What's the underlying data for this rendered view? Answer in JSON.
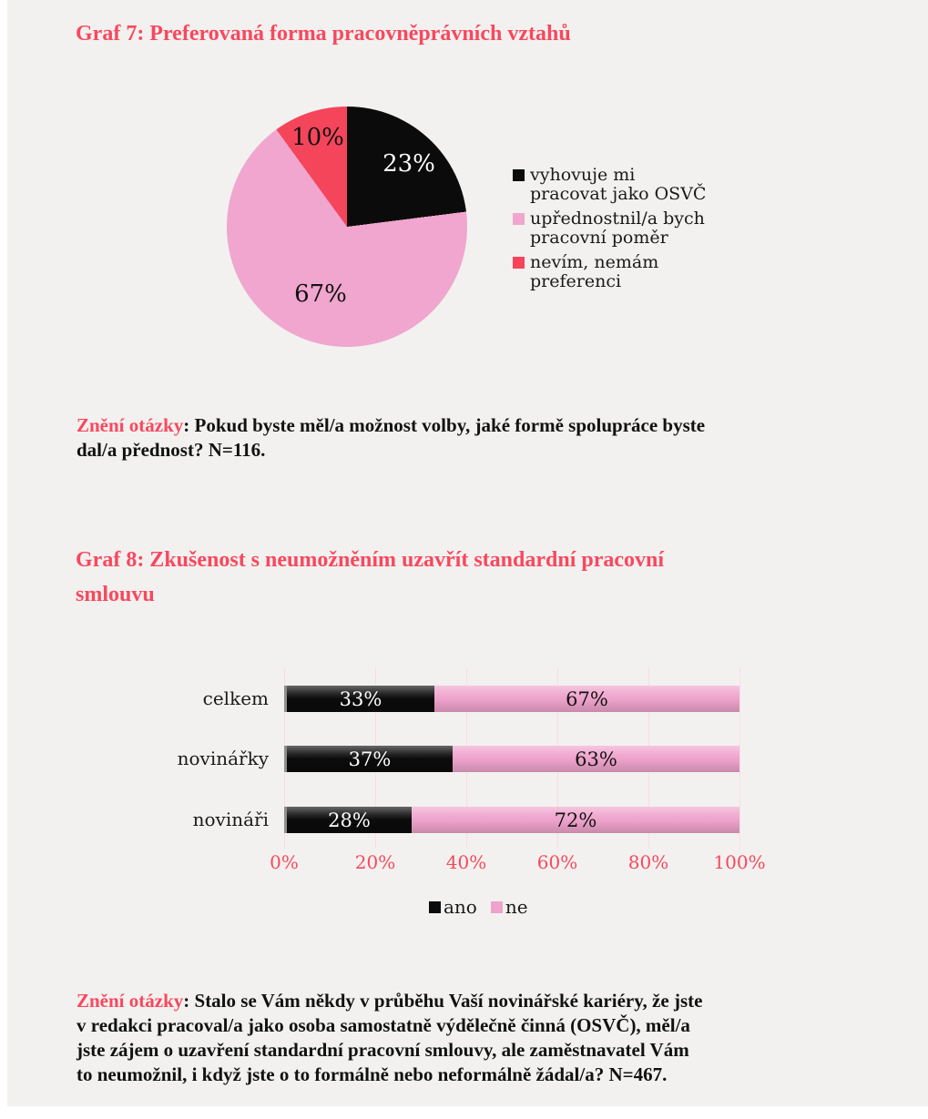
{
  "accent_color": "#f8485e",
  "background_color": "#f2f1ef",
  "questions": [
    {
      "prefix": "Znění otázky",
      "lines": [
        ": Pokud byste měl/a možnost volby, jaké formě spolupráce byste",
        "dal/a přednost? N=116."
      ]
    },
    {
      "prefix": "Znění otázky",
      "lines": [
        ": Stalo se Vám někdy v průběhu Vaší novinářské kariéry, že jste",
        "v redakci pracoval/a jako osoba samostatně výdělečně činná (OSVČ), měl/a",
        "jste zájem o uzavření standardní pracovní smlouvy, ale zaměstnavatel Vám",
        "to neumožnil, i když jste o to formálně nebo neformálně žádal/a? N=467."
      ]
    }
  ],
  "chart_data": [
    {
      "type": "pie",
      "title": "Graf 7: Preferovaná forma pracovněprávních vztahů",
      "start_angle": "12 o'clock, clockwise",
      "legend_position": "right",
      "slices": [
        {
          "label": "vyhovuje mi pracovat jako OSVČ",
          "legend_lines": [
            "vyhovuje mi",
            "pracovat jako OSVČ"
          ],
          "value": 23,
          "color": "#0b0b0b",
          "label_color": "#ffffff"
        },
        {
          "label": "upřednostnil/a bych pracovní poměr",
          "legend_lines": [
            "upřednostnil/a bych",
            "pracovní poměr"
          ],
          "value": 67,
          "color": "#f0a6ce",
          "label_color": "#111111"
        },
        {
          "label": "nevím, nemám preferenci",
          "legend_lines": [
            "nevím, nemám",
            "preferenci"
          ],
          "value": 10,
          "color": "#f5455b",
          "label_color": "#111111"
        }
      ]
    },
    {
      "type": "bar",
      "orientation": "horizontal-stacked",
      "title": "Graf 8: Zkušenost s neumožněním uzavřít standardní pracovní smlouvu",
      "title_lines": [
        "Graf 8: Zkušenost s neumožněním uzavřít standardní pracovní",
        "smlouvu"
      ],
      "categories": [
        "celkem",
        "novinářky",
        "novináři"
      ],
      "series": [
        {
          "name": "ano",
          "color": "#0b0b0b",
          "text_color": "#ffffff",
          "values": [
            33,
            37,
            28
          ]
        },
        {
          "name": "ne",
          "color": "#efa3cc",
          "text_color": "#111111",
          "values": [
            67,
            63,
            72
          ]
        }
      ],
      "x_ticks": [
        "0%",
        "20%",
        "40%",
        "60%",
        "80%",
        "100%"
      ],
      "xlim": [
        0,
        100
      ],
      "grid": true,
      "gridline_color": "#f8dce9",
      "legend_position": "bottom"
    }
  ]
}
